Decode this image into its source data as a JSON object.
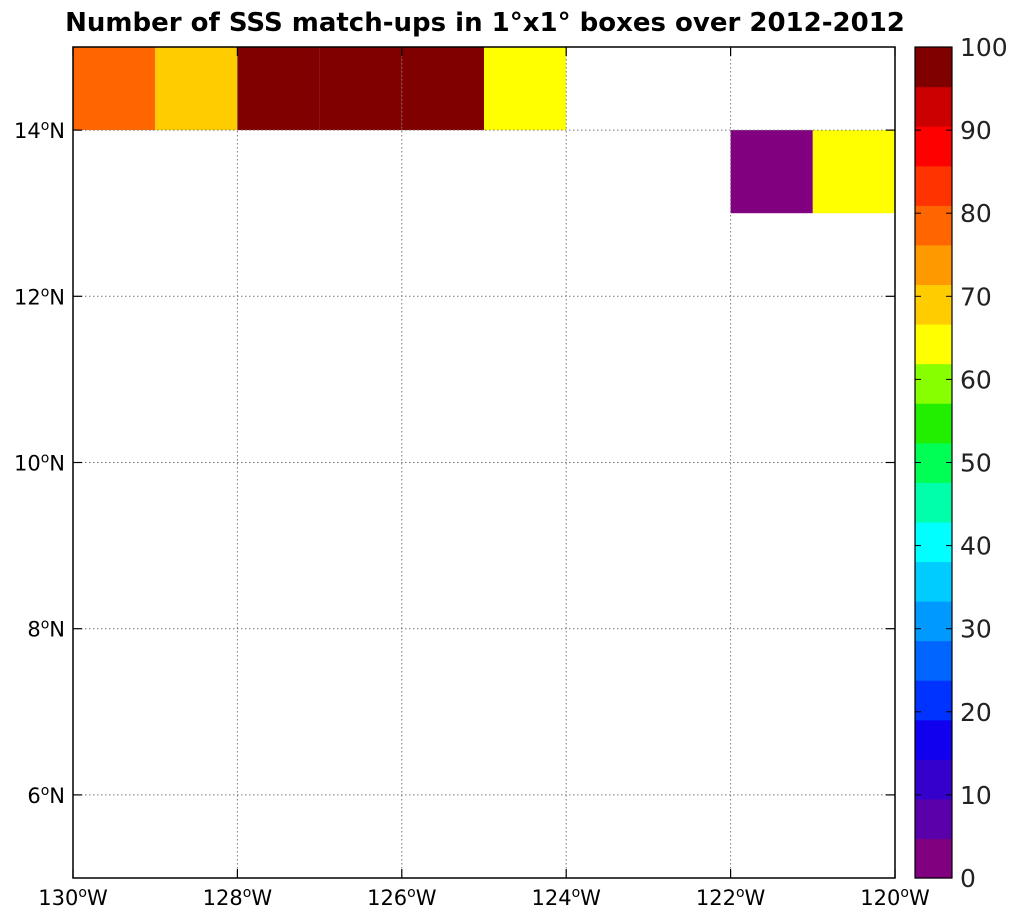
{
  "chart_data": {
    "type": "heatmap",
    "title": "Number of SSS match-ups in 1°x1° boxes over 2012-2012",
    "x_range": [
      -130,
      -120
    ],
    "y_range": [
      5,
      15
    ],
    "x_ticks": [
      {
        "value": -130,
        "deg": "130",
        "hemi": "W"
      },
      {
        "value": -128,
        "deg": "128",
        "hemi": "W"
      },
      {
        "value": -126,
        "deg": "126",
        "hemi": "W"
      },
      {
        "value": -124,
        "deg": "124",
        "hemi": "W"
      },
      {
        "value": -122,
        "deg": "122",
        "hemi": "W"
      },
      {
        "value": -120,
        "deg": "120",
        "hemi": "W"
      }
    ],
    "y_ticks": [
      {
        "value": 6,
        "deg": "6",
        "hemi": "N"
      },
      {
        "value": 8,
        "deg": "8",
        "hemi": "N"
      },
      {
        "value": 10,
        "deg": "10",
        "hemi": "N"
      },
      {
        "value": 12,
        "deg": "12",
        "hemi": "N"
      },
      {
        "value": 14,
        "deg": "14",
        "hemi": "N"
      }
    ],
    "grid": true,
    "cells": [
      {
        "lon": -130,
        "lat": 14,
        "value": 82
      },
      {
        "lon": -129,
        "lat": 14,
        "value": 73
      },
      {
        "lon": -128,
        "lat": 14,
        "value": 100
      },
      {
        "lon": -127,
        "lat": 14,
        "value": 100
      },
      {
        "lon": -126,
        "lat": 14,
        "value": 100
      },
      {
        "lon": -125,
        "lat": 14,
        "value": 68
      },
      {
        "lon": -122,
        "lat": 13,
        "value": 3
      },
      {
        "lon": -121,
        "lat": 13,
        "value": 68
      }
    ],
    "colorbar": {
      "min": 0,
      "max": 100,
      "step": 5,
      "tick_labels": [
        "0",
        "10",
        "20",
        "30",
        "40",
        "50",
        "60",
        "70",
        "80",
        "90",
        "100"
      ],
      "colors": [
        "#800080",
        "#5a00aa",
        "#3500cc",
        "#1000ee",
        "#0033ff",
        "#0066ff",
        "#0099ff",
        "#00ccff",
        "#00ffff",
        "#00ffaa",
        "#00ff55",
        "#22ee00",
        "#88ff00",
        "#ffff00",
        "#ffcc00",
        "#ff9900",
        "#ff6600",
        "#ff3300",
        "#ff0000",
        "#cc0000",
        "#800000"
      ]
    }
  }
}
